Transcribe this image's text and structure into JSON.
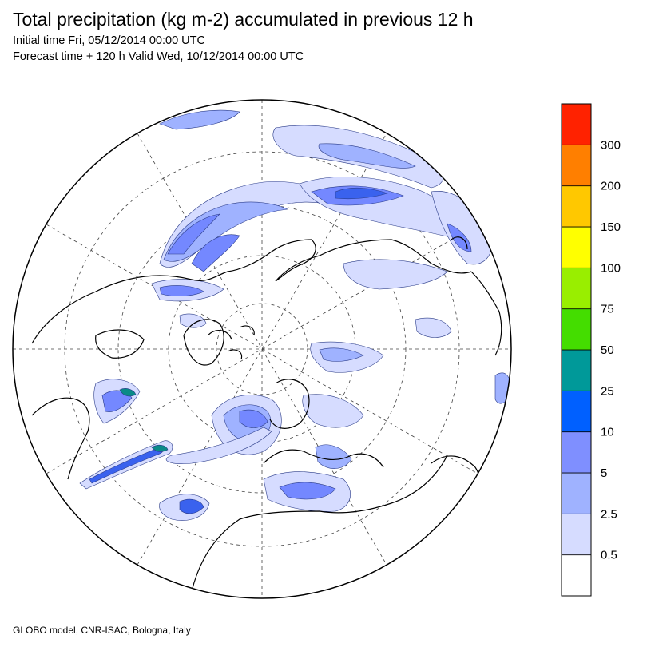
{
  "header": {
    "title": "Total precipitation (kg m-2) accumulated in previous 12 h",
    "initial_time": "Initial time Fri, 05/12/2014 00:00 UTC",
    "forecast_time": "Forecast time + 120 h Valid Wed, 10/12/2014 00:00 UTC"
  },
  "footer": {
    "credit": "GLOBO model, CNR-ISAC, Bologna, Italy"
  },
  "map": {
    "projection": "polar stereographic (north pole)",
    "graticule": "dashed",
    "land_outline_color": "#000000",
    "precip_fill_colors": [
      "#d6dcff",
      "#9fb2ff",
      "#7488ff",
      "#3a62ee",
      "#0a8a88"
    ]
  },
  "legend": {
    "labels": [
      "0.5",
      "2.5",
      "5",
      "10",
      "25",
      "50",
      "75",
      "100",
      "150",
      "200",
      "300"
    ],
    "colors": [
      "#ffffff",
      "#d6dcff",
      "#9fb2ff",
      "#7f8fff",
      "#0060ff",
      "#009999",
      "#44dd00",
      "#99ee00",
      "#ffff00",
      "#ffc800",
      "#ff7f00",
      "#ff2200"
    ]
  }
}
